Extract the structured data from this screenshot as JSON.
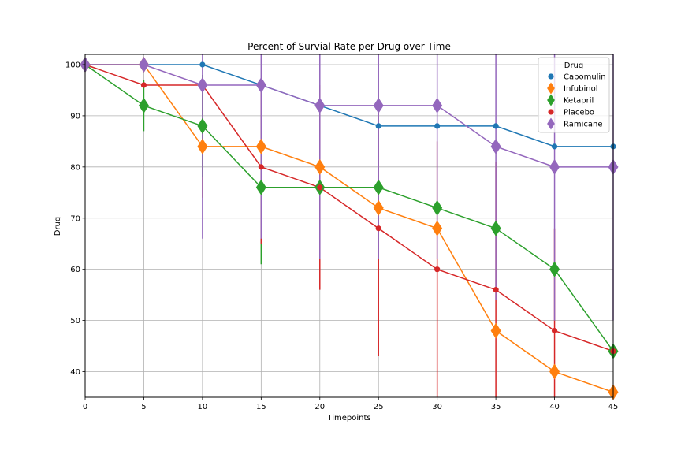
{
  "chart_data": {
    "type": "line",
    "title": "Percent of Survial Rate per Drug over Time",
    "xlabel": "Timepoints",
    "ylabel": "Drug",
    "xlim": [
      0,
      45
    ],
    "ylim": [
      35,
      102
    ],
    "x": [
      0,
      5,
      10,
      15,
      20,
      25,
      30,
      35,
      40,
      45
    ],
    "xticks": [
      0,
      5,
      10,
      15,
      20,
      25,
      30,
      35,
      40,
      45
    ],
    "yticks": [
      40,
      50,
      60,
      70,
      80,
      90,
      100
    ],
    "grid": true,
    "legend": {
      "title": "Drug",
      "placement": "top-right"
    },
    "series": [
      {
        "name": "Capomulin",
        "color": "#1f77b4",
        "marker": "circle",
        "values": [
          100,
          100,
          100,
          96,
          92,
          88,
          88,
          88,
          84,
          84
        ],
        "error": [
          0,
          0,
          0,
          0,
          0,
          0,
          0,
          0,
          0,
          0
        ]
      },
      {
        "name": "Infubinol",
        "color": "#ff7f0e",
        "marker": "diamond",
        "values": [
          100,
          100,
          84,
          84,
          80,
          72,
          68,
          48,
          40,
          36
        ],
        "error": [
          0,
          0,
          10,
          0,
          0,
          0,
          0,
          0,
          0,
          0
        ]
      },
      {
        "name": "Ketapril",
        "color": "#2ca02c",
        "marker": "diamond",
        "values": [
          100,
          92,
          88,
          76,
          76,
          76,
          72,
          68,
          60,
          44
        ],
        "error": [
          0,
          5,
          10,
          15,
          0,
          0,
          0,
          0,
          0,
          0
        ]
      },
      {
        "name": "Placebo",
        "color": "#d62728",
        "marker": "circle",
        "values": [
          100,
          96,
          96,
          80,
          76,
          68,
          60,
          56,
          48,
          44
        ],
        "error": [
          0,
          0,
          0,
          15,
          20,
          25,
          25,
          25,
          20,
          0
        ]
      },
      {
        "name": "Ramicane",
        "color": "#9467bd",
        "marker": "diamond",
        "values": [
          100,
          100,
          96,
          96,
          92,
          92,
          92,
          84,
          80,
          80
        ],
        "error": [
          0,
          0,
          30,
          30,
          30,
          30,
          30,
          30,
          30,
          30
        ]
      }
    ]
  }
}
